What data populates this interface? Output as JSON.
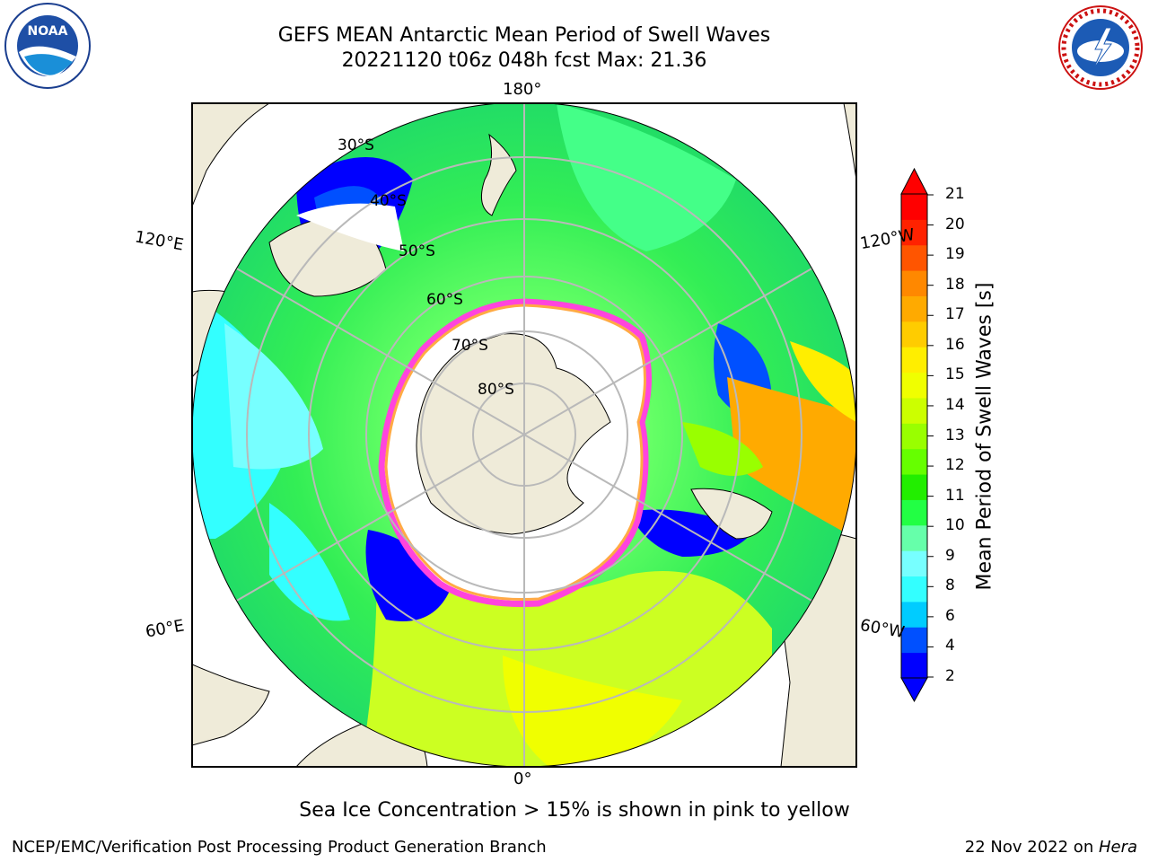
{
  "title": {
    "line1": "GEFS MEAN Antarctic Mean Period of Swell Waves",
    "line2": "20221120 t06z 048h fcst   Max: 21.36"
  },
  "logos": {
    "left": "noaa-logo",
    "right": "nws-logo",
    "left_text": "NOAA",
    "right_text": "NATIONAL WEATHER SERVICE"
  },
  "map": {
    "projection": "south-polar-stereographic",
    "longitude_labels": {
      "top": "180°",
      "bottom": "0°",
      "left_upper": "120°E",
      "left_lower": "60°E",
      "right_upper": "120°W",
      "right_lower": "60°W"
    },
    "latitude_labels": [
      "30°S",
      "40°S",
      "50°S",
      "60°S",
      "70°S",
      "80°S"
    ],
    "colors": {
      "land": "#efebd9",
      "ice_edge": "#ff44dd",
      "grid": "#b9b9b9"
    }
  },
  "colorbar": {
    "label": "Mean Period of Swell Waves [s]",
    "ticks": [
      "21",
      "20",
      "19",
      "18",
      "17",
      "16",
      "15",
      "14",
      "13",
      "12",
      "11",
      "10",
      "9",
      "8",
      "6",
      "4",
      "2"
    ],
    "colors": [
      "#0000ff",
      "#0050ff",
      "#00ccff",
      "#33ffff",
      "#77ffff",
      "#66ffaa",
      "#22ff44",
      "#22ee00",
      "#66ff00",
      "#99ff00",
      "#ccff00",
      "#f0ff00",
      "#ffee00",
      "#ffcc00",
      "#ffaa00",
      "#ff8800",
      "#ff5500",
      "#ff2200",
      "#ff0000"
    ]
  },
  "caption": "Sea Ice Concentration > 15% is shown in pink to yellow",
  "footer": {
    "left": "NCEP/EMC/Verification Post Processing Product Generation Branch",
    "right_prefix": "22 Nov 2022 on ",
    "right_italic": "Hera"
  }
}
